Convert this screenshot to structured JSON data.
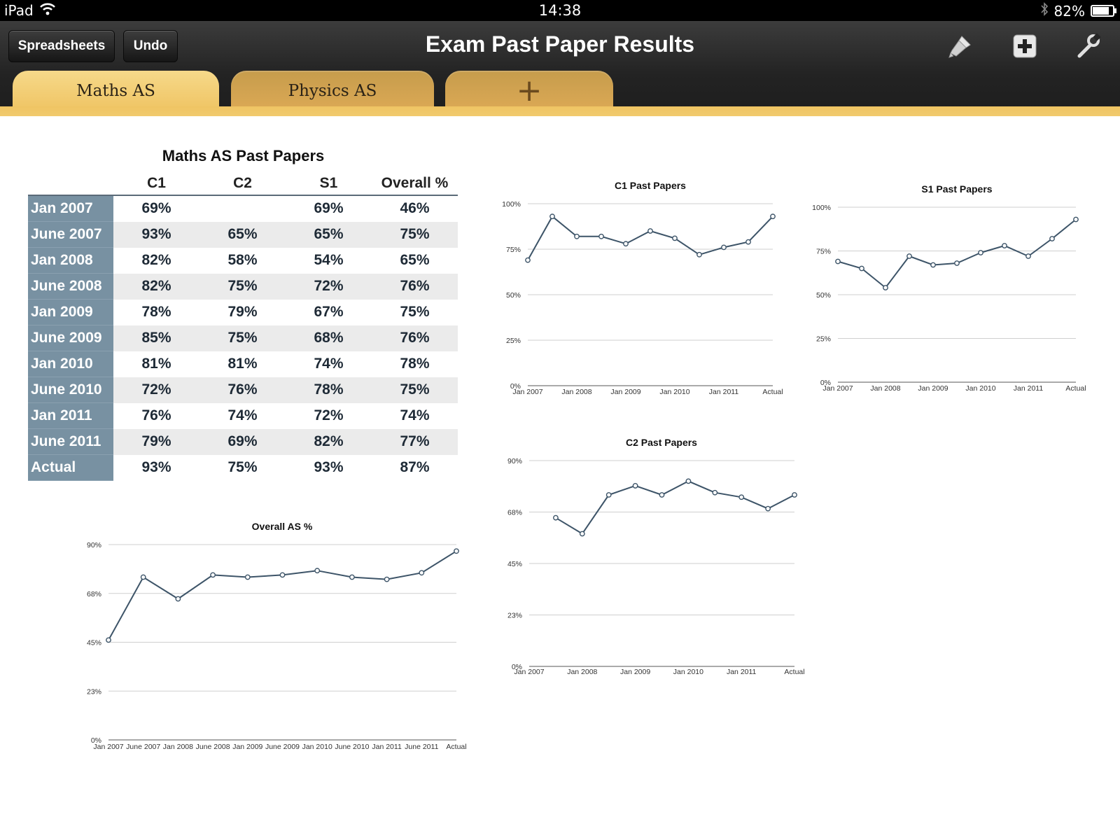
{
  "status_bar": {
    "device": "iPad",
    "time": "14:38",
    "battery_percent": "82%"
  },
  "toolbar": {
    "spreadsheets_label": "Spreadsheets",
    "undo_label": "Undo",
    "title": "Exam Past Paper Results"
  },
  "tabs": [
    {
      "label": "Maths AS"
    },
    {
      "label": "Physics AS"
    },
    {
      "label": "+"
    }
  ],
  "table": {
    "title": "Maths AS Past Papers",
    "columns": [
      "C1",
      "C2",
      "S1",
      "Overall %"
    ],
    "rows": [
      {
        "label": "Jan 2007",
        "values": [
          "69%",
          "",
          "69%",
          "46%"
        ]
      },
      {
        "label": "June 2007",
        "values": [
          "93%",
          "65%",
          "65%",
          "75%"
        ]
      },
      {
        "label": "Jan 2008",
        "values": [
          "82%",
          "58%",
          "54%",
          "65%"
        ]
      },
      {
        "label": "June 2008",
        "values": [
          "82%",
          "75%",
          "72%",
          "76%"
        ]
      },
      {
        "label": "Jan 2009",
        "values": [
          "78%",
          "79%",
          "67%",
          "75%"
        ]
      },
      {
        "label": "June 2009",
        "values": [
          "85%",
          "75%",
          "68%",
          "76%"
        ]
      },
      {
        "label": "Jan 2010",
        "values": [
          "81%",
          "81%",
          "74%",
          "78%"
        ]
      },
      {
        "label": "June 2010",
        "values": [
          "72%",
          "76%",
          "78%",
          "75%"
        ]
      },
      {
        "label": "Jan 2011",
        "values": [
          "76%",
          "74%",
          "72%",
          "74%"
        ]
      },
      {
        "label": "June 2011",
        "values": [
          "79%",
          "69%",
          "82%",
          "77%"
        ]
      },
      {
        "label": "Actual",
        "values": [
          "93%",
          "75%",
          "93%",
          "87%"
        ]
      }
    ]
  },
  "chart_data": [
    {
      "id": "c1",
      "type": "line",
      "title": "C1 Past Papers",
      "x": [
        "Jan 2007",
        "June 2007",
        "Jan 2008",
        "June 2008",
        "Jan 2009",
        "June 2009",
        "Jan 2010",
        "June 2010",
        "Jan 2011",
        "June 2011",
        "Actual"
      ],
      "values": [
        69,
        93,
        82,
        82,
        78,
        85,
        81,
        72,
        76,
        79,
        93
      ],
      "ylim": [
        0,
        100
      ],
      "yticks": [
        0,
        25,
        50,
        75,
        100
      ],
      "ytick_labels": [
        "0%",
        "25%",
        "50%",
        "75%",
        "100%"
      ],
      "xtick_labels": [
        "Jan 2007",
        "",
        "Jan 2008",
        "",
        "Jan 2009",
        "",
        "Jan 2010",
        "",
        "Jan 2011",
        "",
        "Actual"
      ],
      "grid": true
    },
    {
      "id": "s1",
      "type": "line",
      "title": "S1 Past Papers",
      "x": [
        "Jan 2007",
        "June 2007",
        "Jan 2008",
        "June 2008",
        "Jan 2009",
        "June 2009",
        "Jan 2010",
        "June 2010",
        "Jan 2011",
        "June 2011",
        "Actual"
      ],
      "values": [
        69,
        65,
        54,
        72,
        67,
        68,
        74,
        78,
        72,
        82,
        93
      ],
      "ylim": [
        0,
        100
      ],
      "yticks": [
        0,
        25,
        50,
        75,
        100
      ],
      "ytick_labels": [
        "0%",
        "25%",
        "50%",
        "75%",
        "100%"
      ],
      "xtick_labels": [
        "Jan 2007",
        "",
        "Jan 2008",
        "",
        "Jan 2009",
        "",
        "Jan 2010",
        "",
        "Jan 2011",
        "",
        "Actual"
      ],
      "grid": true
    },
    {
      "id": "c2",
      "type": "line",
      "title": "C2 Past Papers",
      "x": [
        "Jan 2007",
        "June 2007",
        "Jan 2008",
        "June 2008",
        "Jan 2009",
        "June 2009",
        "Jan 2010",
        "June 2010",
        "Jan 2011",
        "June 2011",
        "Actual"
      ],
      "values": [
        null,
        65,
        58,
        75,
        79,
        75,
        81,
        76,
        74,
        69,
        75
      ],
      "ylim": [
        0,
        90
      ],
      "yticks": [
        0,
        22.5,
        45,
        67.5,
        90
      ],
      "ytick_labels": [
        "0%",
        "23%",
        "45%",
        "68%",
        "90%"
      ],
      "xtick_labels": [
        "Jan 2007",
        "",
        "Jan 2008",
        "",
        "Jan 2009",
        "",
        "Jan 2010",
        "",
        "Jan 2011",
        "",
        "Actual"
      ],
      "grid": true
    },
    {
      "id": "overall",
      "type": "line",
      "title": "Overall AS %",
      "x": [
        "Jan 2007",
        "June 2007",
        "Jan 2008",
        "June 2008",
        "Jan 2009",
        "June 2009",
        "Jan 2010",
        "June 2010",
        "Jan 2011",
        "June 2011",
        "Actual"
      ],
      "values": [
        46,
        75,
        65,
        76,
        75,
        76,
        78,
        75,
        74,
        77,
        87
      ],
      "ylim": [
        0,
        90
      ],
      "yticks": [
        0,
        22.5,
        45,
        67.5,
        90
      ],
      "ytick_labels": [
        "0%",
        "23%",
        "45%",
        "68%",
        "90%"
      ],
      "xtick_labels": [
        "Jan 2007",
        "June 2007",
        "Jan 2008",
        "June 2008",
        "Jan 2009",
        "June 2009",
        "Jan 2010",
        "June 2010",
        "Jan 2011",
        "June 2011",
        "Actual"
      ],
      "grid": true
    }
  ],
  "colors": {
    "line": "#3d5468",
    "grid": "#cfcfcf",
    "row_header": "#7891a2",
    "tab_active": "#f3d17d"
  }
}
